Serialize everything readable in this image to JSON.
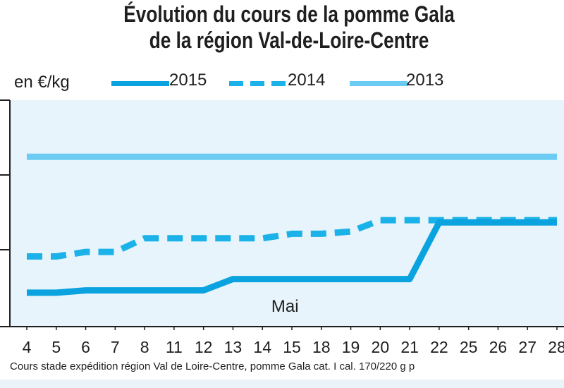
{
  "chart_data": {
    "type": "line",
    "title": "Évolution du cours de la pomme Gala de la région Val-de-Loire-Centre",
    "title_lines": [
      "Évolution du cours de la pomme Gala",
      "de la région Val-de-Loire-Centre"
    ],
    "ylabel": "en €/kg",
    "xlabel": "",
    "categories": [
      "4",
      "5",
      "6",
      "7",
      "8",
      "11",
      "12",
      "13",
      "14",
      "15",
      "18",
      "19",
      "20",
      "21",
      "22",
      "25",
      "26",
      "27",
      "28"
    ],
    "series": [
      {
        "name": "2015",
        "style": "solid",
        "color": "#0aa3df",
        "values": [
          0.15,
          0.15,
          0.16,
          0.16,
          0.16,
          0.16,
          0.16,
          0.21,
          0.21,
          0.21,
          0.21,
          0.21,
          0.21,
          0.21,
          0.46,
          0.46,
          0.46,
          0.46,
          0.46
        ]
      },
      {
        "name": "2014",
        "style": "dashed",
        "color": "#1ab2e8",
        "values": [
          0.31,
          0.31,
          0.33,
          0.33,
          0.39,
          0.39,
          0.39,
          0.39,
          0.39,
          0.41,
          0.41,
          0.42,
          0.47,
          0.47,
          0.47,
          0.47,
          0.47,
          0.47,
          0.47
        ]
      },
      {
        "name": "2013",
        "style": "solid",
        "color": "#6ccbf3",
        "values": [
          0.75,
          0.75,
          0.75,
          0.75,
          0.75,
          0.75,
          0.75,
          0.75,
          0.75,
          0.75,
          0.75,
          0.75,
          0.75,
          0.75,
          0.75,
          0.75,
          0.75,
          0.75,
          0.75
        ]
      }
    ],
    "ylim": [
      0,
      1
    ],
    "grid": false,
    "legend_position": "top",
    "annotations": [
      {
        "text": "Mai",
        "x": "14"
      }
    ]
  },
  "footer": "Cours stade expédition région Val de Loire-Centre, pomme Gala cat. I cal. 170/220 g p"
}
